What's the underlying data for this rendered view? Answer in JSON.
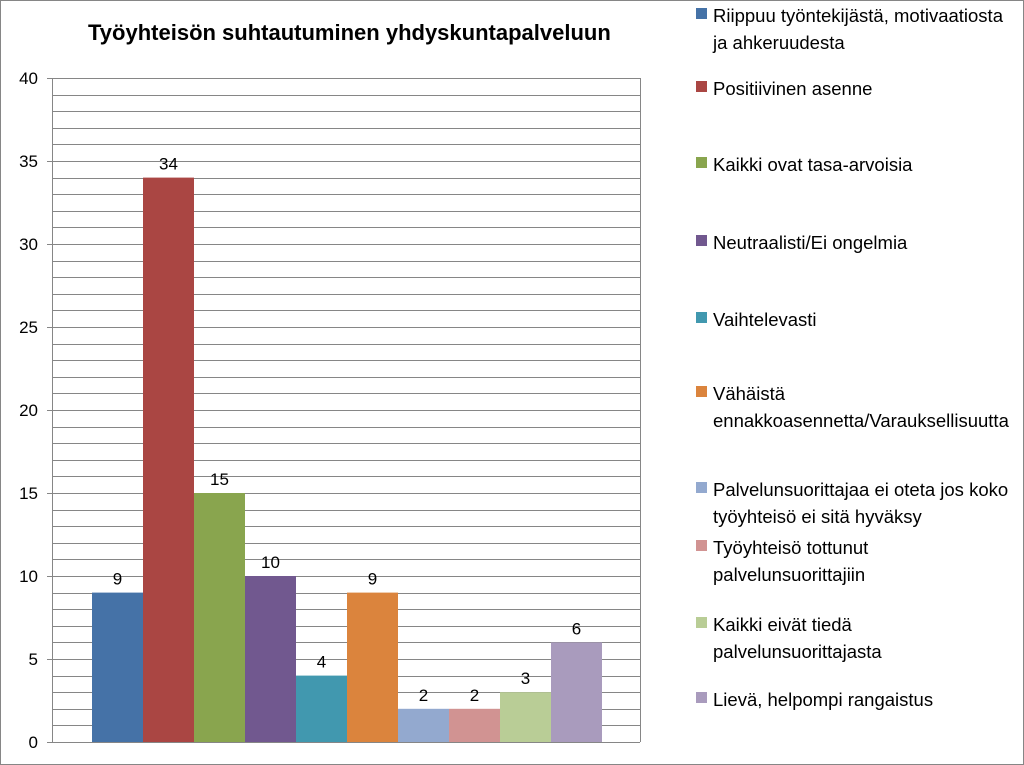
{
  "chart_data": {
    "type": "bar",
    "title": "Työyhteisön suhtautuminen yhdyskuntapalveluun",
    "xlabel": "",
    "ylabel": "",
    "ylim": [
      0,
      40
    ],
    "yticks": [
      "0",
      "5",
      "10",
      "15",
      "20",
      "25",
      "30",
      "35",
      "40"
    ],
    "grid": true,
    "legend_position": "right",
    "series": [
      {
        "name": "Riippuu työntekijästä, motivaatiosta ja ahkeruudesta",
        "value": 9,
        "color": "#4572A7"
      },
      {
        "name": "Positiivinen asenne",
        "value": 34,
        "color": "#AA4643"
      },
      {
        "name": "Kaikki ovat tasa-arvoisia",
        "value": 15,
        "color": "#89A54E"
      },
      {
        "name": "Neutraalisti/Ei ongelmia",
        "value": 10,
        "color": "#71588F"
      },
      {
        "name": "Vaihtelevasti",
        "value": 4,
        "color": "#4198AF"
      },
      {
        "name": "Vähäistä ennakkoasennetta/Varauksellisuutta",
        "value": 9,
        "color": "#DB843D"
      },
      {
        "name": "Palvelunsuorittajaa ei oteta jos koko työyhteisö ei sitä hyväksy",
        "value": 2,
        "color": "#93A9CF"
      },
      {
        "name": "Työyhteisö tottunut palvelunsuorittajiin",
        "value": 2,
        "color": "#D19392"
      },
      {
        "name": "Kaikki eivät tiedä palvelunsuorittajasta",
        "value": 3,
        "color": "#B9CD96"
      },
      {
        "name": "Lievä, helpompi rangaistus",
        "value": 6,
        "color": "#A99BBD"
      }
    ]
  }
}
